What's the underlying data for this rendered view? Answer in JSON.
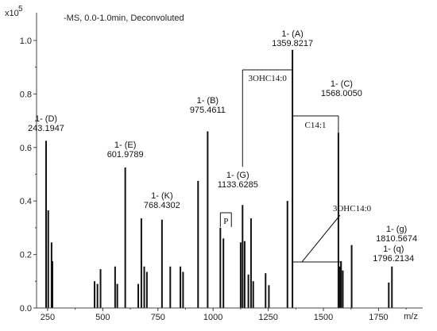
{
  "chart_data": {
    "type": "bar",
    "title": "-MS, 0.0-1.0min, Deconvoluted",
    "y_scale_label": "x10",
    "y_scale_exponent": "5",
    "xlabel": "m/z",
    "ylabel": "",
    "xlim": [
      200,
      1950
    ],
    "ylim": [
      0,
      1.08
    ],
    "x_ticks": [
      {
        "value": 250,
        "label": "250"
      },
      {
        "value": 500,
        "label": "500"
      },
      {
        "value": 750,
        "label": "750"
      },
      {
        "value": 1000,
        "label": "1000"
      },
      {
        "value": 1250,
        "label": "1250"
      },
      {
        "value": 1500,
        "label": "1500"
      },
      {
        "value": 1750,
        "label": "1750"
      }
    ],
    "y_ticks": [
      {
        "value": 0.0,
        "label": "0.0"
      },
      {
        "value": 0.2,
        "label": "0.2"
      },
      {
        "value": 0.4,
        "label": "0.4"
      },
      {
        "value": 0.6,
        "label": "0.6"
      },
      {
        "value": 0.8,
        "label": "0.8"
      },
      {
        "value": 1.0,
        "label": "1.0"
      }
    ],
    "peaks": [
      {
        "x": 243.1947,
        "y": 0.625
      },
      {
        "x": 253,
        "y": 0.365
      },
      {
        "x": 268,
        "y": 0.245
      },
      {
        "x": 272,
        "y": 0.175
      },
      {
        "x": 463,
        "y": 0.1
      },
      {
        "x": 476,
        "y": 0.09
      },
      {
        "x": 490,
        "y": 0.145
      },
      {
        "x": 556,
        "y": 0.155
      },
      {
        "x": 566,
        "y": 0.09
      },
      {
        "x": 601.9789,
        "y": 0.525
      },
      {
        "x": 661,
        "y": 0.09
      },
      {
        "x": 675,
        "y": 0.335
      },
      {
        "x": 688,
        "y": 0.155
      },
      {
        "x": 700,
        "y": 0.135
      },
      {
        "x": 768.4302,
        "y": 0.33
      },
      {
        "x": 806,
        "y": 0.155
      },
      {
        "x": 852,
        "y": 0.155
      },
      {
        "x": 864,
        "y": 0.135
      },
      {
        "x": 932,
        "y": 0.475
      },
      {
        "x": 975.4611,
        "y": 0.66
      },
      {
        "x": 1033,
        "y": 0.3
      },
      {
        "x": 1047,
        "y": 0.26
      },
      {
        "x": 1133.6285,
        "y": 0.385
      },
      {
        "x": 1125,
        "y": 0.245
      },
      {
        "x": 1143,
        "y": 0.25
      },
      {
        "x": 1160,
        "y": 0.125
      },
      {
        "x": 1172,
        "y": 0.335
      },
      {
        "x": 1182,
        "y": 0.1
      },
      {
        "x": 1238,
        "y": 0.13
      },
      {
        "x": 1253,
        "y": 0.085
      },
      {
        "x": 1337,
        "y": 0.4
      },
      {
        "x": 1359.8217,
        "y": 0.965
      },
      {
        "x": 1568.005,
        "y": 0.655
      },
      {
        "x": 1574,
        "y": 0.155
      },
      {
        "x": 1580,
        "y": 0.175
      },
      {
        "x": 1588,
        "y": 0.14
      },
      {
        "x": 1628,
        "y": 0.235
      },
      {
        "x": 1796.2134,
        "y": 0.095
      },
      {
        "x": 1810.5674,
        "y": 0.155
      }
    ],
    "peak_labels": [
      {
        "x": 243.1947,
        "top": "1- (D)",
        "bottom": "243.1947"
      },
      {
        "x": 601.9789,
        "top": "1- (E)",
        "bottom": "601.9789"
      },
      {
        "x": 768.4302,
        "top": "1- (K)",
        "bottom": "768.4302"
      },
      {
        "x": 975.4611,
        "top": "1- (B)",
        "bottom": "975.4611"
      },
      {
        "x": 1133.6285,
        "top": "1- (G)",
        "bottom": "1133.6285"
      },
      {
        "x": 1359.8217,
        "top": "1- (A)",
        "bottom": "1359.8217"
      },
      {
        "x": 1568.005,
        "top": "1- (C)",
        "bottom": "1568.0050"
      },
      {
        "x": 1810.5674,
        "top": "1- (g)",
        "bottom": "1810.5674"
      },
      {
        "x": 1796.2134,
        "top": "1- (q)",
        "bottom": "1796.2134"
      }
    ],
    "annotations": {
      "bracket_3ohc14_top": "3OHC14:0",
      "bracket_c14": "C14:1",
      "bracket_p": "P",
      "arrow_3ohc14": "3OHC14:0"
    }
  }
}
